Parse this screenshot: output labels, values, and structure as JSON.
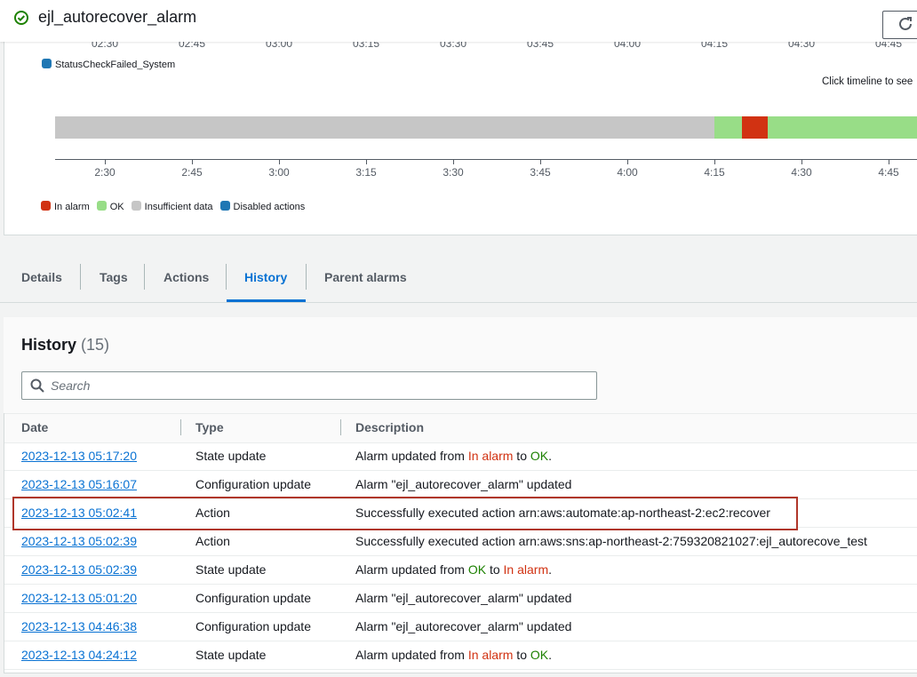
{
  "header": {
    "title": "ejl_autorecover_alarm"
  },
  "chart": {
    "top_axis": [
      "02:30",
      "02:45",
      "03:00",
      "03:15",
      "03:30",
      "03:45",
      "04:00",
      "04:15",
      "04:30",
      "04:45"
    ],
    "metric_legend": "StatusCheckFailed_System",
    "hint": "Click timeline to see",
    "bottom_axis": [
      "2:30",
      "2:45",
      "3:00",
      "3:15",
      "3:30",
      "3:45",
      "4:00",
      "4:15",
      "4:30",
      "4:45"
    ],
    "legend": [
      {
        "label": "In alarm",
        "color": "#d13212"
      },
      {
        "label": "OK",
        "color": "#98dd87"
      },
      {
        "label": "Insufficient data",
        "color": "#c6c6c6"
      },
      {
        "label": "Disabled actions",
        "color": "#1f77b4"
      }
    ]
  },
  "tabs": [
    "Details",
    "Tags",
    "Actions",
    "History",
    "Parent alarms"
  ],
  "history": {
    "title": "History",
    "count": "(15)",
    "search_placeholder": "Search",
    "columns": [
      "Date",
      "Type",
      "Description"
    ],
    "rows": [
      {
        "date": "2023-12-13 05:17:20",
        "type": "State update",
        "description": [
          {
            "text": "Alarm updated from "
          },
          {
            "text": "In alarm",
            "color": "#d13212"
          },
          {
            "text": " to "
          },
          {
            "text": "OK",
            "color": "#1d8102"
          },
          {
            "text": "."
          }
        ]
      },
      {
        "date": "2023-12-13 05:16:07",
        "type": "Configuration update",
        "description": [
          {
            "text": "Alarm \"ejl_autorecover_alarm\" updated"
          }
        ]
      },
      {
        "date": "2023-12-13 05:02:41",
        "type": "Action",
        "description": [
          {
            "text": "Successfully executed action arn:aws:automate:ap-northeast-2:ec2:recover"
          }
        ]
      },
      {
        "date": "2023-12-13 05:02:39",
        "type": "Action",
        "description": [
          {
            "text": "Successfully executed action arn:aws:sns:ap-northeast-2:759320821027:ejl_autorecove_test"
          }
        ]
      },
      {
        "date": "2023-12-13 05:02:39",
        "type": "State update",
        "description": [
          {
            "text": "Alarm updated from "
          },
          {
            "text": "OK",
            "color": "#1d8102"
          },
          {
            "text": " to "
          },
          {
            "text": "In alarm",
            "color": "#d13212"
          },
          {
            "text": "."
          }
        ]
      },
      {
        "date": "2023-12-13 05:01:20",
        "type": "Configuration update",
        "description": [
          {
            "text": "Alarm \"ejl_autorecover_alarm\" updated"
          }
        ]
      },
      {
        "date": "2023-12-13 04:46:38",
        "type": "Configuration update",
        "description": [
          {
            "text": "Alarm \"ejl_autorecover_alarm\" updated"
          }
        ]
      },
      {
        "date": "2023-12-13 04:24:12",
        "type": "State update",
        "description": [
          {
            "text": "Alarm updated from "
          },
          {
            "text": "In alarm",
            "color": "#d13212"
          },
          {
            "text": " to "
          },
          {
            "text": "OK",
            "color": "#1d8102"
          },
          {
            "text": "."
          }
        ]
      }
    ]
  }
}
